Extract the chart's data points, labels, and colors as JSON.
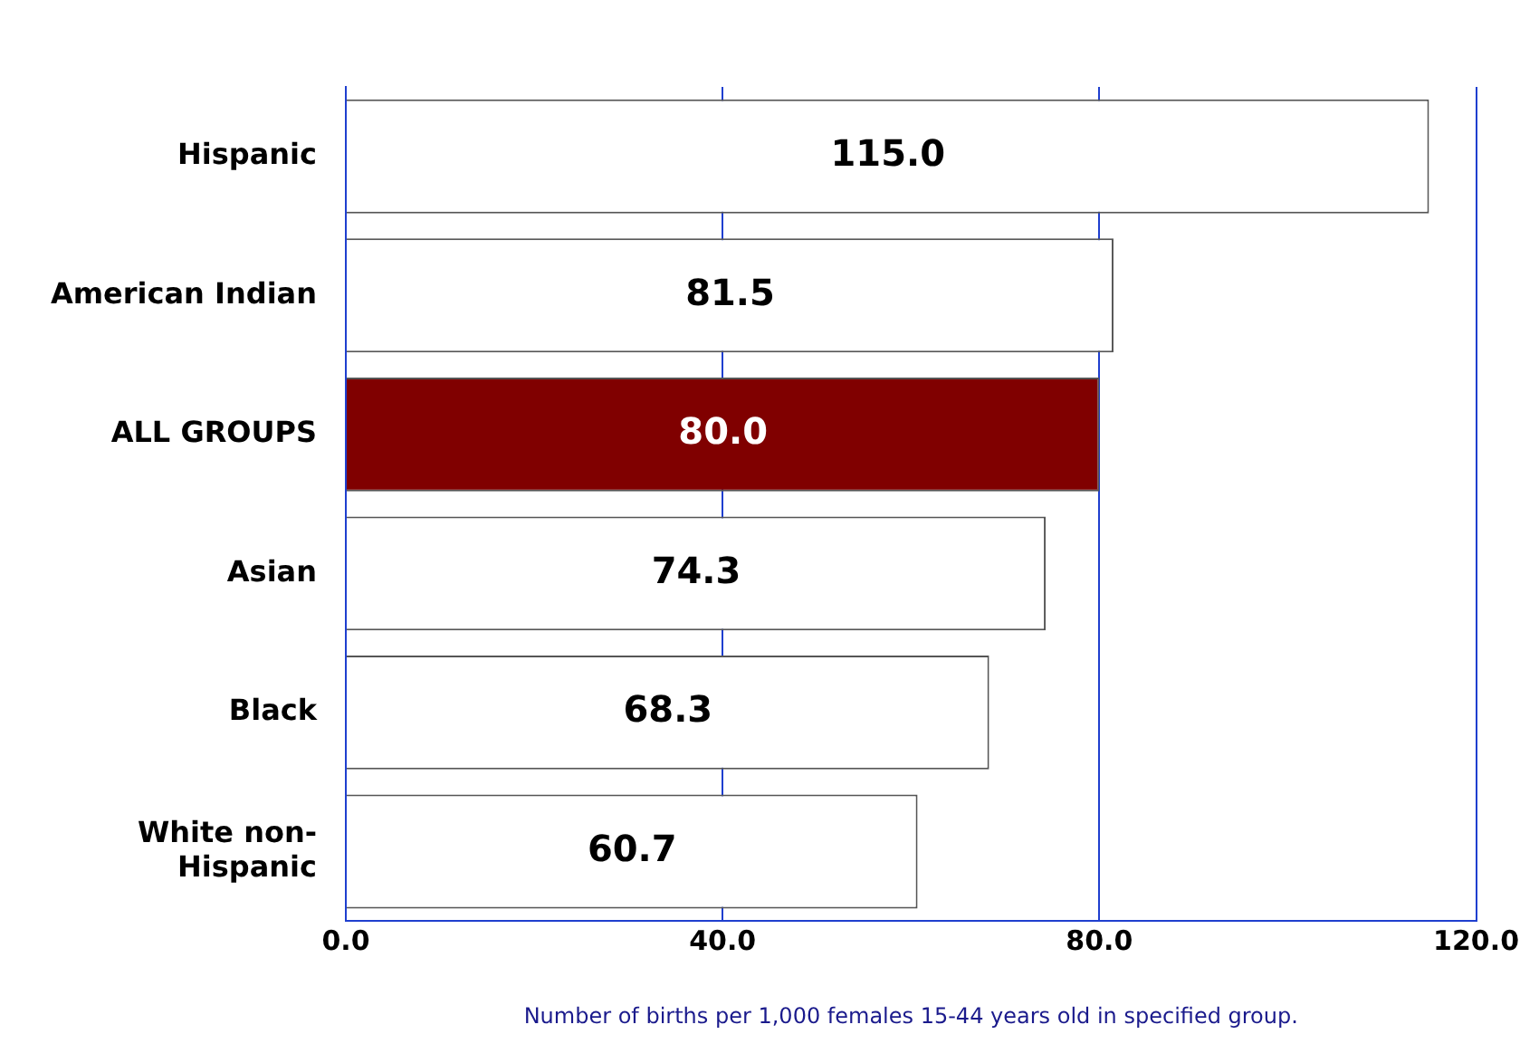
{
  "chart_data": {
    "type": "bar",
    "orientation": "horizontal",
    "categories": [
      "Hispanic",
      "American Indian",
      "ALL GROUPS",
      "Asian",
      "Black",
      "White non-Hispanic"
    ],
    "values": [
      115.0,
      81.5,
      80.0,
      74.3,
      68.3,
      60.7
    ],
    "colors": [
      "#ffffff",
      "#ffffff",
      "#800000",
      "#ffffff",
      "#ffffff",
      "#ffffff"
    ],
    "xlim": [
      0,
      120
    ],
    "xticks": [
      {
        "value": 0,
        "label": "0.0"
      },
      {
        "value": 40,
        "label": "40.0"
      },
      {
        "value": 80,
        "label": "80.0"
      },
      {
        "value": 120,
        "label": "120.0"
      }
    ],
    "value_labels": [
      "115.0",
      "81.5",
      "80.0",
      "74.3",
      "68.3",
      "60.7"
    ],
    "grid": "x",
    "legend": false,
    "xlabel": "Number of births per 1,000 females 15-44 years old in specified group."
  }
}
